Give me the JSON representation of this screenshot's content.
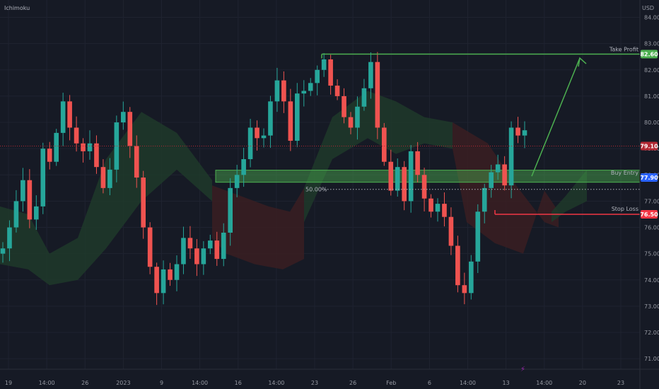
{
  "header": {
    "indicator_label": "Ichimoku",
    "currency_label": "USD"
  },
  "colors": {
    "background": "#161a25",
    "up": "#26a69a",
    "down": "#ef5350",
    "take_profit": "#4caf50",
    "stop_loss": "#f23645",
    "buy_entry_zone": "#4caf50",
    "current_price": "#b22833",
    "buy_tag": "#2962ff",
    "cloud_bull": "#1f3a2a",
    "cloud_bear": "#3a1e22"
  },
  "chart_data": {
    "type": "candlestick",
    "ylim": [
      70.6,
      84.5
    ],
    "y_ticks": [
      "71.00",
      "72.00",
      "73.00",
      "74.00",
      "75.00",
      "76.00",
      "77.00",
      "78.00",
      "79.00",
      "80.00",
      "81.00",
      "82.00",
      "83.00",
      "84.00"
    ],
    "x_ticks": [
      "19",
      "14:00",
      "26",
      "2023",
      "9",
      "14:00",
      "16",
      "14:00",
      "23",
      "26",
      "Feb",
      "6",
      "14:00",
      "13",
      "14:00",
      "20",
      "23"
    ],
    "levels": {
      "take_profit": {
        "label": "Take Profit",
        "price": "82.60",
        "value": 82.6
      },
      "current": {
        "price": "79.10",
        "value": 79.1
      },
      "buy_entry": {
        "label": "Buy Entry",
        "price": "77.90",
        "value": 77.9,
        "zone": [
          77.72,
          78.18
        ]
      },
      "fib_50": {
        "label": "50.00%",
        "value": 77.45
      },
      "stop_loss": {
        "label": "Stop Loss",
        "price": "76.50",
        "value": 76.5
      }
    },
    "close_path": [
      75.2,
      76.0,
      77.0,
      77.8,
      76.3,
      76.8,
      79.0,
      78.5,
      79.6,
      80.8,
      79.8,
      79.2,
      78.9,
      79.2,
      78.3,
      77.5,
      78.2,
      80.0,
      80.4,
      79.1,
      77.9,
      76.0,
      74.5,
      73.5,
      74.4,
      74.0,
      74.6,
      75.6,
      75.2,
      74.6,
      75.2,
      75.5,
      74.8,
      75.8,
      77.5,
      78.0,
      78.6,
      79.8,
      79.4,
      79.5,
      80.8,
      81.6,
      80.8,
      79.3,
      81.1,
      81.2,
      81.5,
      82.0,
      82.4,
      81.4,
      81.0,
      80.2,
      79.8,
      80.6,
      81.3,
      82.3,
      79.8,
      78.5,
      77.4,
      78.3,
      77.0,
      78.9,
      78.0,
      77.1,
      76.6,
      76.9,
      76.4,
      75.3,
      73.8,
      73.5,
      74.7,
      76.6,
      77.5,
      78.1,
      78.4,
      77.6,
      79.8,
      79.5,
      79.7
    ],
    "annotations": {
      "lightning": "⚡"
    }
  }
}
